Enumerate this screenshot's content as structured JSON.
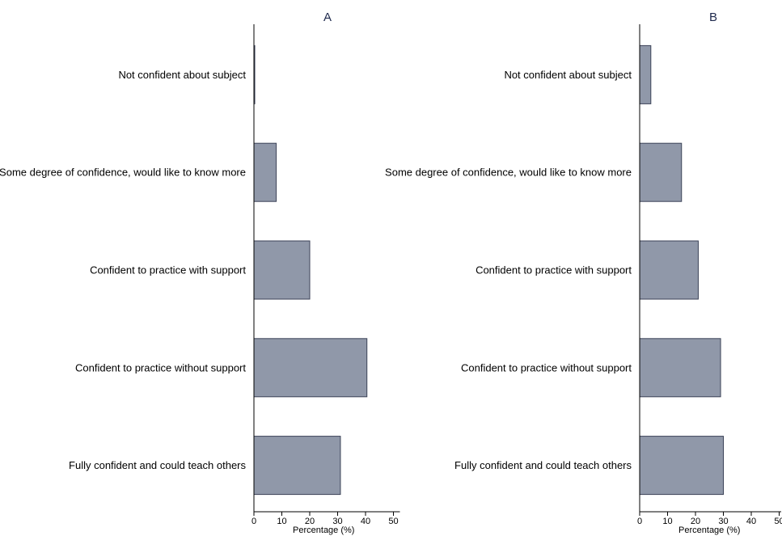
{
  "chart_data": [
    {
      "type": "bar",
      "orientation": "horizontal",
      "title": "A",
      "categories": [
        "Not confident about subject",
        "Some degree of confidence, would like to know more",
        "Confident to practice with support",
        "Confident to practice without support",
        "Fully confident and could teach others"
      ],
      "values": [
        0.3,
        8,
        20,
        40.5,
        31
      ],
      "xlabel": "Percentage  (%)",
      "xlim": [
        0,
        50
      ],
      "xticks": [
        "0",
        "10",
        "20",
        "30",
        "40",
        "50"
      ],
      "colors": {
        "bar_fill": "#9098a9",
        "bar_stroke": "#3b4257",
        "title": "#1f2a4d"
      },
      "grid": false
    },
    {
      "type": "bar",
      "orientation": "horizontal",
      "title": "B",
      "categories": [
        "Not confident about subject",
        "Some degree of confidence, would like to know more",
        "Confident to practice with support",
        "Confident to practice without support",
        "Fully confident and could teach others"
      ],
      "values": [
        4,
        15,
        21,
        29,
        30
      ],
      "xlabel": "Percentage  (%)",
      "xlim": [
        0,
        50
      ],
      "xticks": [
        "0",
        "10",
        "20",
        "30",
        "40",
        "50"
      ],
      "colors": {
        "bar_fill": "#9098a9",
        "bar_stroke": "#3b4257",
        "title": "#1f2a4d"
      },
      "grid": false
    }
  ]
}
